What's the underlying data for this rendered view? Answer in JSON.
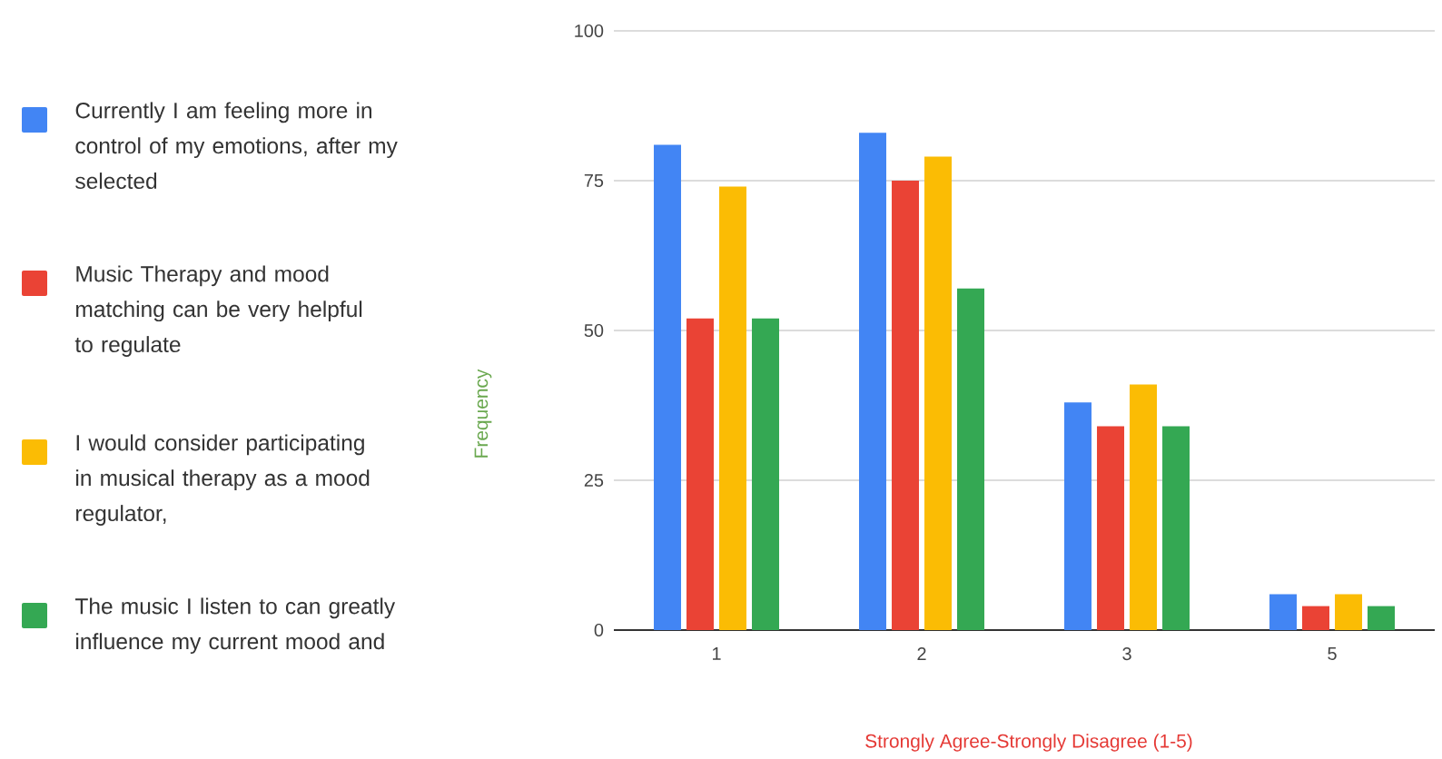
{
  "chart_data": {
    "type": "bar",
    "xlabel": "Strongly Agree-Strongly Disagree (1-5)",
    "ylabel": "Frequency",
    "categories": [
      "1",
      "2",
      "3",
      "5"
    ],
    "series": [
      {
        "name": "Currently I am feeling more in control of my emotions, after my selected",
        "color": "#4285f4",
        "values": [
          81,
          83,
          38,
          6
        ]
      },
      {
        "name": "Music Therapy and mood matching can be very helpful to regulate",
        "color": "#ea4335",
        "values": [
          52,
          75,
          34,
          4
        ]
      },
      {
        "name": "I would consider participating in musical therapy as a mood regulator,",
        "color": "#fbbc04",
        "values": [
          74,
          79,
          41,
          6
        ]
      },
      {
        "name": "The music I listen to can greatly influence my current mood and",
        "color": "#34a853",
        "values": [
          52,
          57,
          34,
          4
        ]
      }
    ],
    "ylim": [
      0,
      100
    ],
    "yticks": [
      0,
      25,
      50,
      75,
      100
    ],
    "grid": "y",
    "legend": "left"
  }
}
